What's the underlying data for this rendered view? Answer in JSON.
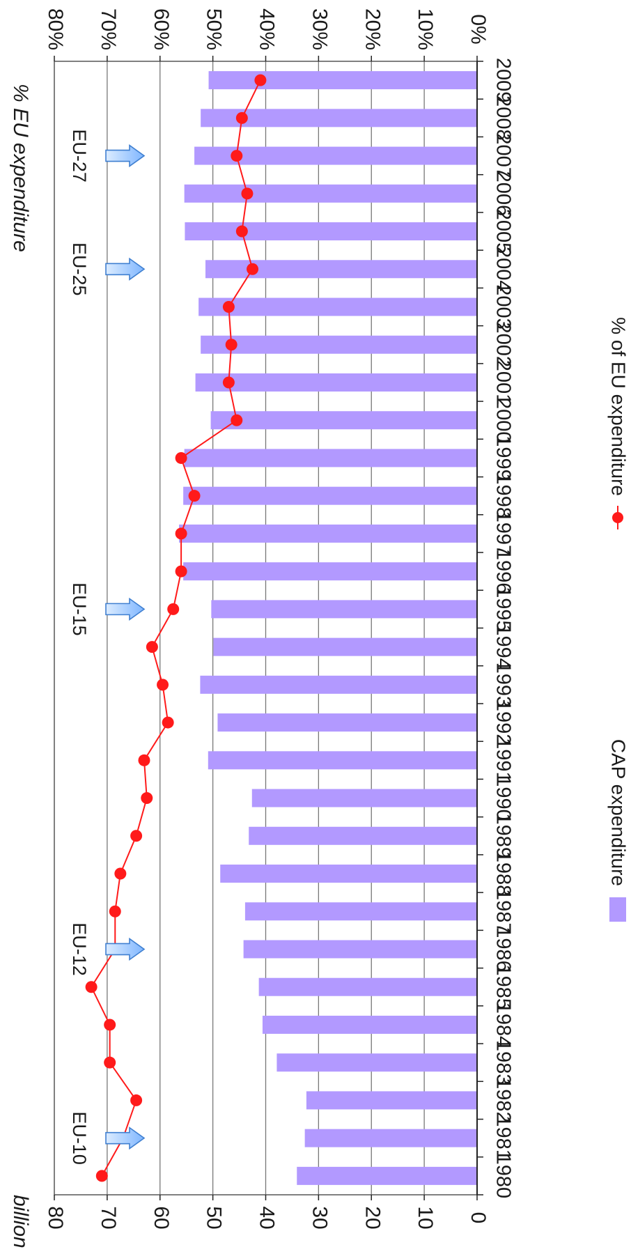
{
  "chart_data": {
    "type": "bar",
    "left_axis_title": "billion EUR",
    "right_axis_title": "% EU expenditure",
    "categories": [
      "1980",
      "1981",
      "1982",
      "1983",
      "1984",
      "1985",
      "1986",
      "1987",
      "1988",
      "1989",
      "1990",
      "1991",
      "1992",
      "1993",
      "1994",
      "1995",
      "1996",
      "1997",
      "1998",
      "1999",
      "2000",
      "2001",
      "2002",
      "2003",
      "2004",
      "2005",
      "2006",
      "2007",
      "2008",
      "2009"
    ],
    "left_ticks": [
      "0",
      "10",
      "20",
      "30",
      "40",
      "50",
      "60",
      "70",
      "80"
    ],
    "right_ticks": [
      "0%",
      "10%",
      "20%",
      "30%",
      "40%",
      "50%",
      "60%",
      "70%",
      "80%"
    ],
    "ylim_left": [
      0,
      80
    ],
    "ylim_right": [
      0,
      80
    ],
    "grid": true,
    "legend_position": "bottom",
    "series": [
      {
        "name": "CAP expenditure",
        "kind": "bar",
        "axis": "left",
        "color": "#b299ff",
        "values": [
          34.1,
          32.6,
          32.3,
          37.9,
          40.6,
          41.3,
          44.2,
          43.9,
          48.6,
          43.2,
          42.6,
          50.9,
          49.1,
          52.4,
          49.9,
          50.3,
          55.6,
          56.4,
          55.6,
          55.4,
          50.4,
          53.3,
          52.3,
          52.7,
          51.4,
          55.3,
          55.4,
          53.5,
          52.3,
          50.8
        ]
      },
      {
        "name": "% of EU expenditure",
        "kind": "line",
        "axis": "right",
        "color": "#ff1a1a",
        "values": [
          71,
          67,
          64.5,
          69.5,
          69.5,
          73,
          68.5,
          68.5,
          67.5,
          64.5,
          62.5,
          63,
          58.5,
          59.5,
          61.5,
          57.5,
          56,
          56,
          53.5,
          56,
          45.5,
          47,
          46.5,
          47,
          42.5,
          44.5,
          43.5,
          45.5,
          44.5,
          41
        ]
      }
    ],
    "annotations": [
      {
        "label": "EU-10",
        "category": "1981"
      },
      {
        "label": "EU-12",
        "category": "1986"
      },
      {
        "label": "EU-15",
        "category": "1995"
      },
      {
        "label": "EU-25",
        "category": "2004"
      },
      {
        "label": "EU-27",
        "category": "2007"
      }
    ]
  }
}
